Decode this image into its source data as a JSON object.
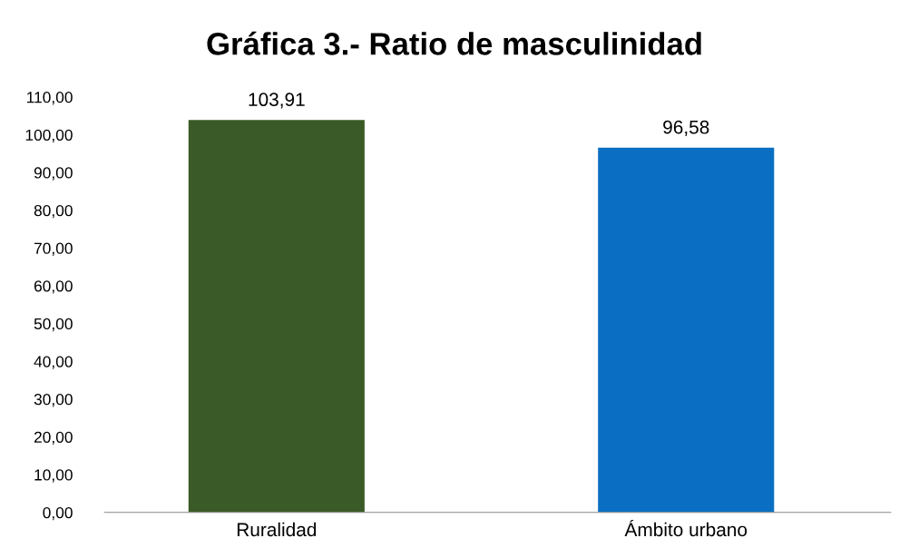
{
  "chart_data": {
    "type": "bar",
    "title": "Gráfica 3.- Ratio de masculinidad",
    "categories": [
      "Ruralidad",
      "Ámbito urbano"
    ],
    "values": [
      103.91,
      96.58
    ],
    "colors": [
      "#3a5a27",
      "#0a6fc2"
    ],
    "value_labels": [
      "103,91",
      "96,58"
    ],
    "ylim": [
      0,
      110
    ],
    "yticks": [
      {
        "value": 0,
        "label": "0,00"
      },
      {
        "value": 10,
        "label": "10,00"
      },
      {
        "value": 20,
        "label": "20,00"
      },
      {
        "value": 30,
        "label": "30,00"
      },
      {
        "value": 40,
        "label": "40,00"
      },
      {
        "value": 50,
        "label": "50,00"
      },
      {
        "value": 60,
        "label": "60,00"
      },
      {
        "value": 70,
        "label": "70,00"
      },
      {
        "value": 80,
        "label": "80,00"
      },
      {
        "value": 90,
        "label": "90,00"
      },
      {
        "value": 100,
        "label": "100,00"
      },
      {
        "value": 110,
        "label": "110,00"
      }
    ],
    "grid": false,
    "legend": false
  }
}
